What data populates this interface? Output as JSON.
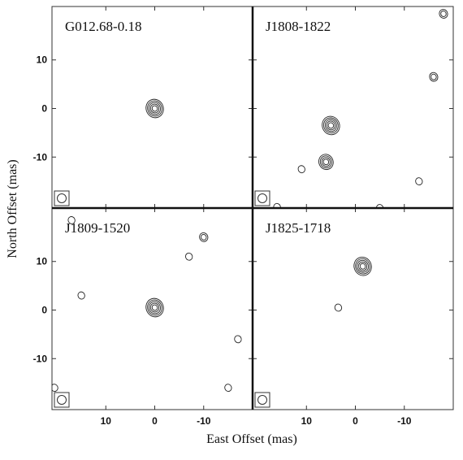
{
  "figure": {
    "xlabel": "East Offset (mas)",
    "ylabel": "North Offset (mas)"
  },
  "chart_data": [
    {
      "type": "contour",
      "title": "G012.68-0.18",
      "xlim": [
        21,
        -20
      ],
      "ylim": [
        -20.5,
        21
      ],
      "xticks": [
        10,
        0,
        -10
      ],
      "yticks": [
        10,
        0,
        -10
      ],
      "sources": [
        {
          "x": 0,
          "y": 0,
          "rings": 5
        }
      ]
    },
    {
      "type": "contour",
      "title": "J1808-1822",
      "xlim": [
        21,
        -20
      ],
      "ylim": [
        -20.5,
        21
      ],
      "xticks": [
        10,
        0,
        -10
      ],
      "yticks": [
        10,
        0,
        -10
      ],
      "sources": [
        {
          "x": 5,
          "y": -3.5,
          "rings": 5
        },
        {
          "x": 6,
          "y": -11,
          "rings": 4
        },
        {
          "x": 11,
          "y": -12.5,
          "rings": 1
        },
        {
          "x": -13,
          "y": -15,
          "rings": 1
        },
        {
          "x": -16,
          "y": 6.5,
          "rings": 2
        },
        {
          "x": -18,
          "y": 19.5,
          "rings": 2
        },
        {
          "x": 16,
          "y": -20.3,
          "rings": 1
        },
        {
          "x": -5,
          "y": -20.5,
          "rings": 1
        }
      ]
    },
    {
      "type": "contour",
      "title": "J1809-1520",
      "xlim": [
        21,
        -20
      ],
      "ylim": [
        -20.5,
        21
      ],
      "xticks": [
        10,
        0,
        -10
      ],
      "yticks": [
        10,
        0,
        -10
      ],
      "sources": [
        {
          "x": 0,
          "y": 0.5,
          "rings": 5
        },
        {
          "x": -10,
          "y": 15,
          "rings": 2
        },
        {
          "x": -7,
          "y": 11,
          "rings": 1
        },
        {
          "x": 17,
          "y": 18.5,
          "rings": 1
        },
        {
          "x": 15,
          "y": 3,
          "rings": 1
        },
        {
          "x": -17,
          "y": -6,
          "rings": 1
        },
        {
          "x": -15,
          "y": -16,
          "rings": 1
        },
        {
          "x": 20.5,
          "y": -16,
          "rings": 1
        }
      ]
    },
    {
      "type": "contour",
      "title": "J1825-1718",
      "xlim": [
        21,
        -20
      ],
      "ylim": [
        -20.5,
        21
      ],
      "xticks": [
        10,
        0,
        -10
      ],
      "yticks": [
        10,
        0,
        -10
      ],
      "sources": [
        {
          "x": -1.5,
          "y": 9,
          "rings": 5
        },
        {
          "x": 3.5,
          "y": 0.5,
          "rings": 1
        }
      ]
    }
  ]
}
